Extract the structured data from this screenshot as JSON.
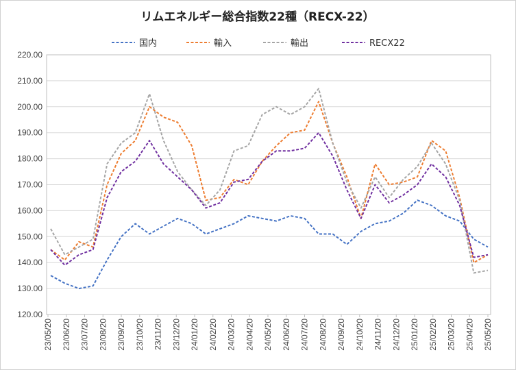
{
  "chart_data": {
    "type": "line",
    "title": "リムエネルギー総合指数22種（RECX-22）",
    "xlabel": "",
    "ylabel": "",
    "ylim": [
      120,
      220
    ],
    "yticks": [
      "120.00",
      "130.00",
      "140.00",
      "150.00",
      "160.00",
      "170.00",
      "180.00",
      "190.00",
      "200.00",
      "210.00",
      "220.00"
    ],
    "x_tick_labels": [
      "23/05/20",
      "23/06/20",
      "23/07/20",
      "23/08/20",
      "23/09/20",
      "23/10/20",
      "23/11/20",
      "23/12/20",
      "24/01/20",
      "24/02/20",
      "24/03/20",
      "24/04/20",
      "24/05/20",
      "24/06/20",
      "24/07/20",
      "24/08/20",
      "24/09/20",
      "24/10/20",
      "24/11/20",
      "24/12/20",
      "25/01/20",
      "25/02/20",
      "25/03/20",
      "25/04/20",
      "25/05/20"
    ],
    "grid": true,
    "legend_position": "top",
    "series": [
      {
        "name": "国内",
        "color": "#4472C4",
        "values": [
          135,
          132,
          130,
          131,
          141,
          150,
          155,
          151,
          154,
          157,
          155,
          151,
          153,
          155,
          158,
          157,
          156,
          158,
          157,
          151,
          151,
          147,
          152,
          155,
          156,
          159,
          164,
          162,
          158,
          156,
          149,
          146
        ]
      },
      {
        "name": "輸入",
        "color": "#ED7D31",
        "values": [
          145,
          141,
          148,
          146,
          170,
          182,
          187,
          200,
          196,
          194,
          185,
          164,
          165,
          172,
          170,
          179,
          185,
          190,
          191,
          202,
          186,
          173,
          157,
          178,
          170,
          171,
          173,
          187,
          183,
          165,
          140,
          143
        ]
      },
      {
        "name": "輸出",
        "color": "#A5A5A5",
        "values": [
          153,
          143,
          146,
          149,
          178,
          186,
          190,
          205,
          187,
          175,
          168,
          162,
          168,
          183,
          185,
          197,
          200,
          197,
          200,
          207,
          186,
          171,
          161,
          173,
          165,
          172,
          177,
          186,
          178,
          164,
          136,
          137
        ]
      },
      {
        "name": "RECX22",
        "color": "#7030A0",
        "values": [
          145,
          139,
          143,
          145,
          165,
          175,
          179,
          187,
          178,
          173,
          168,
          161,
          163,
          171,
          172,
          179,
          183,
          183,
          184,
          190,
          181,
          168,
          157,
          170,
          163,
          166,
          170,
          178,
          173,
          162,
          142,
          143
        ]
      }
    ]
  }
}
